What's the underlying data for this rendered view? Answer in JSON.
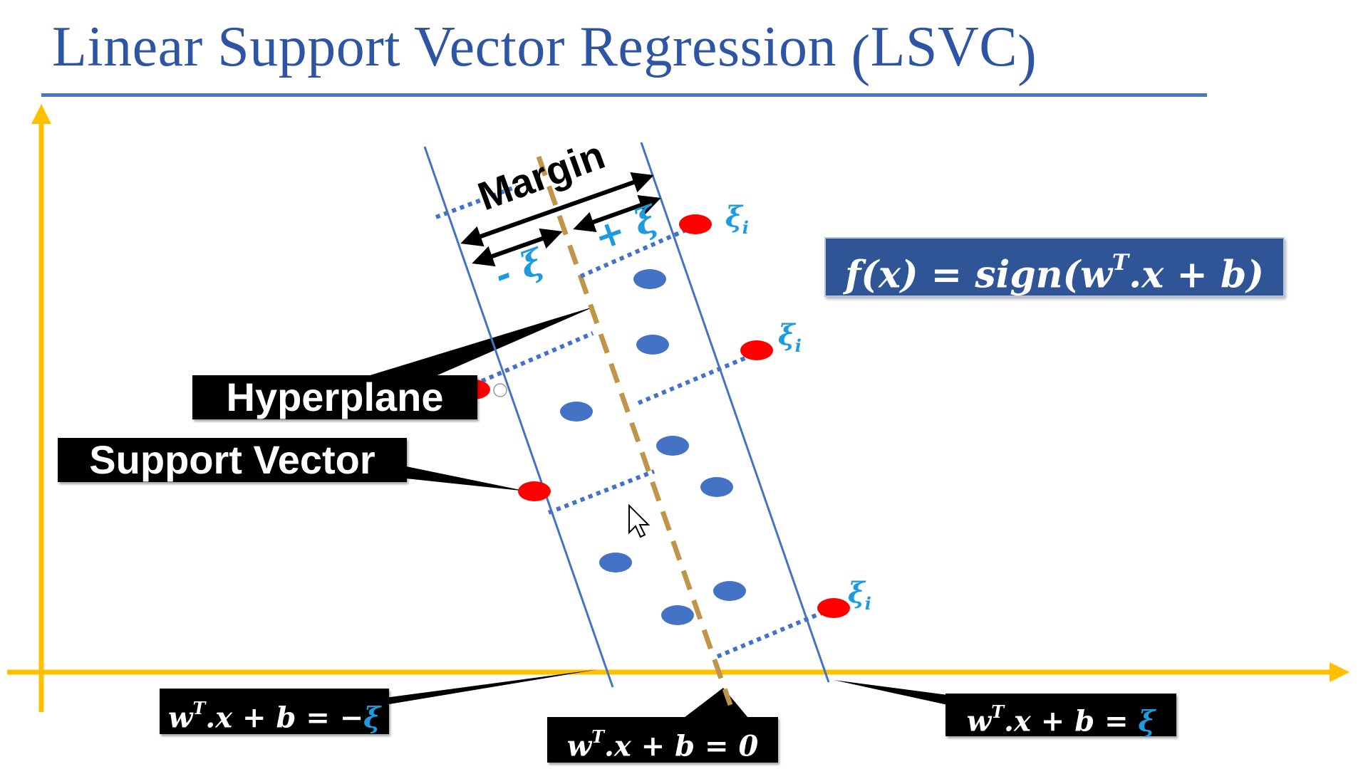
{
  "title": {
    "main": "Linear Support Vector Regression ",
    "paren_open": "(",
    "abbr": "LSVC",
    "paren_close": ")"
  },
  "labels": {
    "margin": "Margin",
    "plus_xi": "+ ξ",
    "minus_xi": "- ξ",
    "hyperplane": "Hyperplane",
    "support_vector": "Support Vector",
    "xi_i": "ξ",
    "xi_i_sub": "i"
  },
  "formula": {
    "prefix": "f(x) = sign(w",
    "sup": "T",
    "suffix": ".x + b)"
  },
  "equations": {
    "left": {
      "w": "w",
      "sup": "T",
      "body": ".x + b = −",
      "xi": "ξ"
    },
    "middle": {
      "w": "w",
      "sup": "T",
      "body": ".x + b = 0"
    },
    "right": {
      "w": "w",
      "sup": "T",
      "body": ".x + b = ",
      "xi": "ξ"
    }
  },
  "colors": {
    "title": "#2e54a4",
    "axes": "#ffc000",
    "boundary": "#4472c4",
    "hyperplane": "#c0954a",
    "slack": "#4472c4",
    "point_blue": "#4472c4",
    "point_red": "#ff0000",
    "xi": "#1e9be0",
    "formula_bg": "#2f5597"
  },
  "icons": [
    "cursor-arrow-icon"
  ]
}
